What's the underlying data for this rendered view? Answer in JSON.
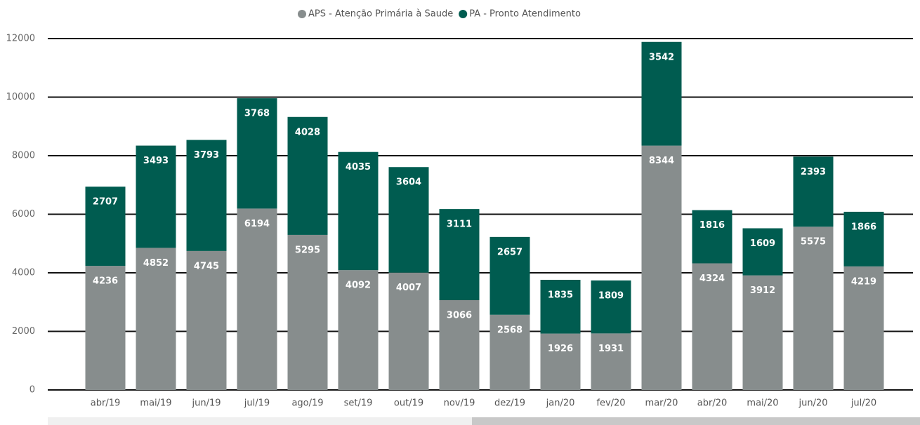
{
  "chart_data": {
    "type": "stacked_bar",
    "categories": [
      "abr/19",
      "mai/19",
      "jun/19",
      "jul/19",
      "ago/19",
      "set/19",
      "out/19",
      "nov/19",
      "dez/19",
      "jan/20",
      "fev/20",
      "mar/20",
      "abr/20",
      "mai/20",
      "jun/20",
      "jul/20"
    ],
    "series": [
      {
        "name": "APS - Atenção Primária à Saude",
        "color": "#878d8d",
        "values": [
          4236,
          4852,
          4745,
          6194,
          5295,
          4092,
          4007,
          3066,
          2568,
          1926,
          1931,
          8344,
          4324,
          3912,
          5575,
          4219
        ]
      },
      {
        "name": "PA - Pronto Atendimento",
        "color": "#005c50",
        "values": [
          2707,
          3493,
          3793,
          3768,
          4028,
          4035,
          3604,
          3111,
          2657,
          1835,
          1809,
          3542,
          1816,
          1609,
          2393,
          1866
        ]
      }
    ],
    "ylim": [
      0,
      12000
    ],
    "yticks": [
      0,
      2000,
      4000,
      6000,
      8000,
      10000,
      12000
    ],
    "grid": true,
    "legend": "top"
  }
}
